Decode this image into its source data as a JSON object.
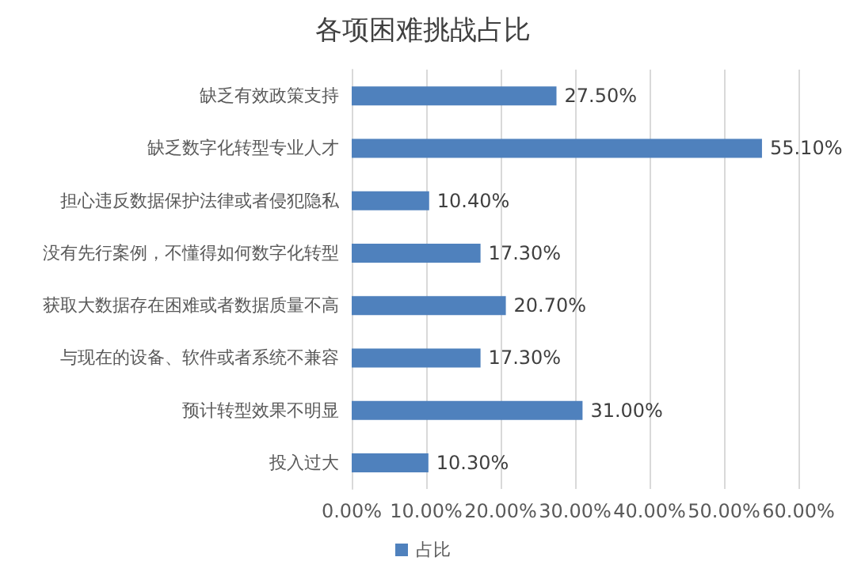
{
  "chart_data": {
    "type": "bar",
    "title": "各项困难挑战占比",
    "orientation": "horizontal",
    "categories": [
      "缺乏有效政策支持",
      "缺乏数字化转型专业人才",
      "担心违反数据保护法律或者侵犯隐私",
      "没有先行案例，不懂得如何数字化转型",
      "获取大数据存在困难或者数据质量不高",
      "与现在的设备、软件或者系统不兼容",
      "预计转型效果不明显",
      "投入过大"
    ],
    "series": [
      {
        "name": "占比",
        "color": "#4f81bd",
        "values": [
          27.5,
          55.1,
          10.4,
          17.3,
          20.7,
          17.3,
          31.0,
          10.3
        ],
        "value_labels": [
          "27.50%",
          "55.10%",
          "10.40%",
          "17.30%",
          "20.70%",
          "17.30%",
          "31.00%",
          "10.30%"
        ]
      }
    ],
    "xlim": [
      0,
      60
    ],
    "xticks": [
      {
        "value": 0,
        "label": "0.00%"
      },
      {
        "value": 10,
        "label": "10.00%"
      },
      {
        "value": 20,
        "label": "20.00%"
      },
      {
        "value": 30,
        "label": "30.00%"
      },
      {
        "value": 40,
        "label": "40.00%"
      },
      {
        "value": 50,
        "label": "50.00%"
      },
      {
        "value": 60,
        "label": "60.00%"
      }
    ],
    "grid": "x",
    "legend": "bottom"
  }
}
